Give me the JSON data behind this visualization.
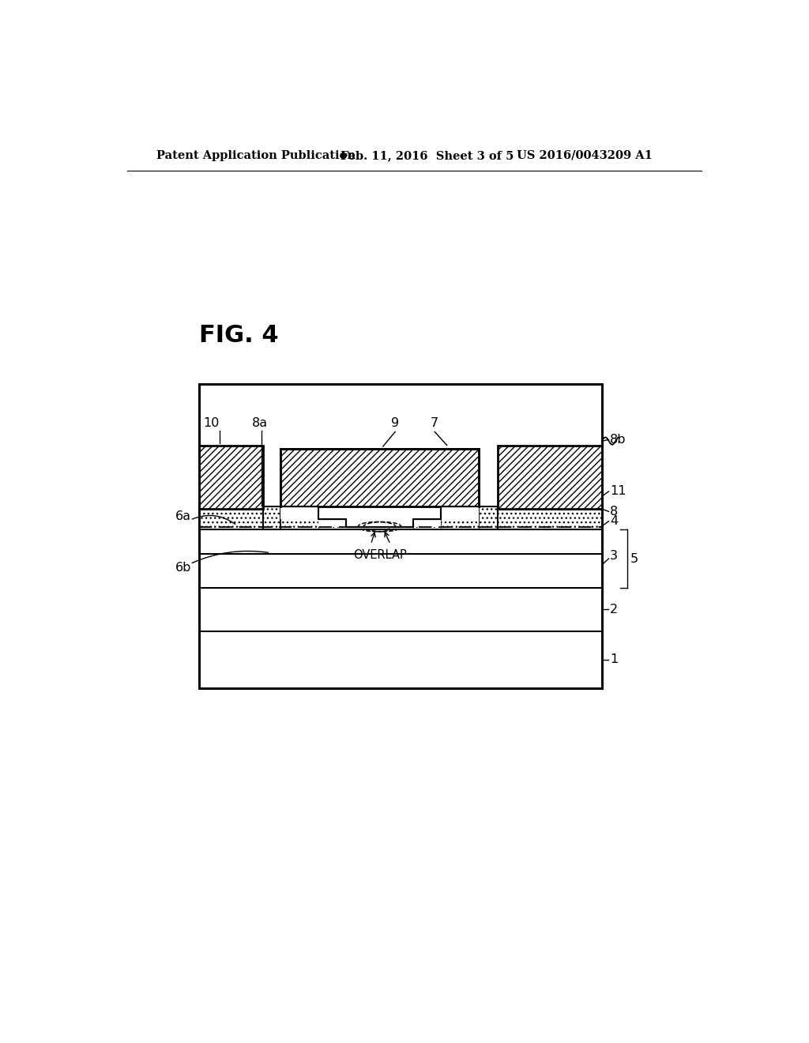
{
  "bg_color": "#ffffff",
  "header_left": "Patent Application Publication",
  "header_center": "Feb. 11, 2016  Sheet 3 of 5",
  "header_right": "US 2016/0043209 A1",
  "fig_label": "FIG. 4"
}
